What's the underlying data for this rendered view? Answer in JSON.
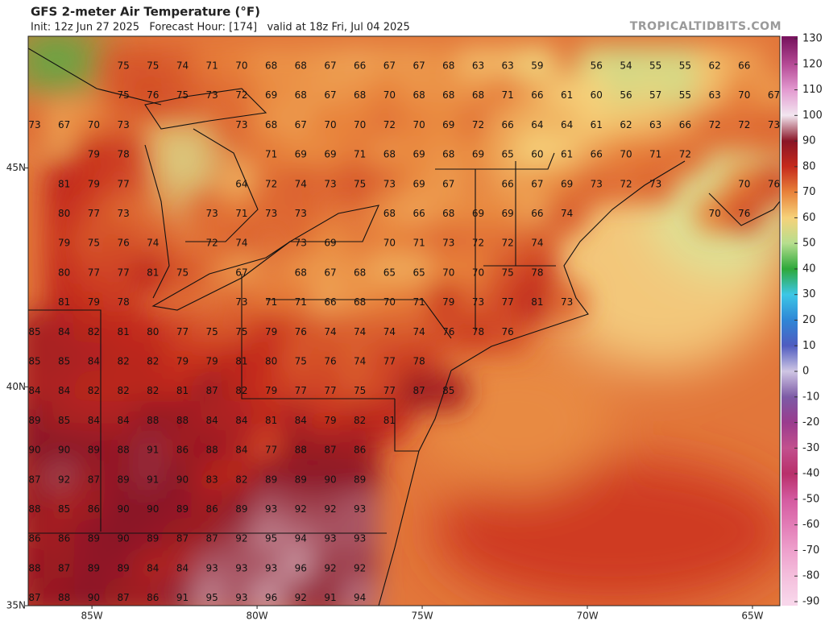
{
  "header": {
    "title": "GFS 2-meter Air Temperature (°F)",
    "subtitle": "Init: 12z Jun 27 2025   Forecast Hour: [174]   valid at 18z Fri, Jul 04 2025",
    "source": "TROPICALTIDBITS.COM"
  },
  "map": {
    "xlim": [
      -86.93,
      -64.17
    ],
    "ylim": [
      35,
      48.01
    ],
    "xticks": [
      {
        "value": -85,
        "label": "85W"
      },
      {
        "value": -80,
        "label": "80W"
      },
      {
        "value": -75,
        "label": "75W"
      },
      {
        "value": -70,
        "label": "70W"
      },
      {
        "value": -65,
        "label": "65W"
      }
    ],
    "yticks": [
      {
        "value": 45,
        "label": "45N"
      },
      {
        "value": 40,
        "label": "40N"
      },
      {
        "value": 35,
        "label": "35N"
      }
    ],
    "temps": [
      [
        null,
        null,
        null,
        75,
        75,
        74,
        71,
        70,
        68,
        68,
        67,
        66,
        67,
        67,
        68,
        63,
        63,
        59,
        null,
        56,
        54,
        55,
        55,
        62,
        66,
        null
      ],
      [
        null,
        null,
        null,
        75,
        76,
        75,
        73,
        72,
        69,
        68,
        67,
        68,
        70,
        68,
        68,
        68,
        71,
        66,
        61,
        60,
        56,
        57,
        55,
        63,
        70,
        67
      ],
      [
        73,
        67,
        70,
        73,
        null,
        null,
        null,
        73,
        68,
        67,
        70,
        70,
        72,
        70,
        69,
        72,
        66,
        64,
        64,
        61,
        62,
        63,
        66,
        72,
        72,
        73
      ],
      [
        null,
        null,
        79,
        78,
        null,
        null,
        null,
        null,
        71,
        69,
        69,
        71,
        68,
        69,
        68,
        69,
        65,
        60,
        61,
        66,
        70,
        71,
        72,
        null,
        null,
        null
      ],
      [
        null,
        81,
        79,
        77,
        null,
        null,
        null,
        64,
        72,
        74,
        73,
        75,
        73,
        69,
        67,
        null,
        66,
        67,
        69,
        73,
        72,
        73,
        null,
        null,
        70,
        76
      ],
      [
        null,
        80,
        77,
        73,
        null,
        null,
        73,
        71,
        73,
        73,
        null,
        null,
        68,
        66,
        68,
        69,
        69,
        66,
        74,
        null,
        null,
        null,
        null,
        70,
        76,
        null
      ],
      [
        null,
        79,
        75,
        76,
        74,
        null,
        72,
        74,
        null,
        73,
        69,
        null,
        70,
        71,
        73,
        72,
        72,
        74,
        null,
        null,
        null,
        null,
        null,
        null,
        null,
        null
      ],
      [
        null,
        80,
        77,
        77,
        81,
        75,
        null,
        67,
        null,
        68,
        67,
        68,
        65,
        65,
        70,
        70,
        75,
        78,
        null,
        null,
        null,
        null,
        null,
        null,
        null,
        null
      ],
      [
        null,
        81,
        79,
        78,
        null,
        null,
        null,
        73,
        71,
        71,
        66,
        68,
        70,
        71,
        79,
        73,
        77,
        81,
        73,
        null,
        null,
        null,
        null,
        null,
        null,
        null
      ],
      [
        85,
        84,
        82,
        81,
        80,
        77,
        75,
        75,
        79,
        76,
        74,
        74,
        74,
        74,
        76,
        78,
        76,
        null,
        null,
        null,
        null,
        null,
        null,
        null,
        null,
        null
      ],
      [
        85,
        85,
        84,
        82,
        82,
        79,
        79,
        81,
        80,
        75,
        76,
        74,
        77,
        78,
        null,
        null,
        null,
        null,
        null,
        null,
        null,
        null,
        null,
        null,
        null,
        null
      ],
      [
        84,
        84,
        82,
        82,
        82,
        81,
        87,
        82,
        79,
        77,
        77,
        75,
        77,
        87,
        85,
        null,
        null,
        null,
        null,
        null,
        null,
        null,
        null,
        null,
        null,
        null
      ],
      [
        89,
        85,
        84,
        84,
        88,
        88,
        84,
        84,
        81,
        84,
        79,
        82,
        81,
        null,
        null,
        null,
        null,
        null,
        null,
        null,
        null,
        null,
        null,
        null,
        null,
        null
      ],
      [
        90,
        90,
        89,
        88,
        91,
        86,
        88,
        84,
        77,
        88,
        87,
        86,
        null,
        null,
        null,
        null,
        null,
        null,
        null,
        null,
        null,
        null,
        null,
        null,
        null,
        null
      ],
      [
        87,
        92,
        87,
        89,
        91,
        90,
        83,
        82,
        89,
        89,
        90,
        89,
        null,
        null,
        null,
        null,
        null,
        null,
        null,
        null,
        null,
        null,
        null,
        null,
        null,
        null
      ],
      [
        88,
        85,
        86,
        90,
        90,
        89,
        86,
        89,
        93,
        92,
        92,
        93,
        null,
        null,
        null,
        null,
        null,
        null,
        null,
        null,
        null,
        null,
        null,
        null,
        null,
        null
      ],
      [
        86,
        86,
        89,
        90,
        89,
        87,
        87,
        92,
        95,
        94,
        93,
        93,
        null,
        null,
        null,
        null,
        null,
        null,
        null,
        null,
        null,
        null,
        null,
        null,
        null,
        null
      ],
      [
        88,
        87,
        89,
        89,
        84,
        84,
        93,
        93,
        93,
        96,
        92,
        92,
        null,
        null,
        null,
        null,
        null,
        null,
        null,
        null,
        null,
        null,
        null,
        null,
        null,
        null
      ],
      [
        87,
        88,
        90,
        87,
        86,
        91,
        95,
        93,
        96,
        92,
        91,
        94,
        null,
        null,
        null,
        null,
        null,
        null,
        null,
        null,
        null,
        null,
        null,
        null,
        null,
        null
      ]
    ]
  },
  "colorbar": {
    "lim": [
      -90,
      130
    ],
    "ticks": [
      130,
      120,
      110,
      100,
      90,
      80,
      70,
      60,
      50,
      40,
      30,
      20,
      10,
      0,
      -10,
      -20,
      -30,
      -40,
      -50,
      -60,
      -70,
      -80,
      -90
    ],
    "colors": [
      "#7a1560",
      "#b54a95",
      "#e39ad0",
      "#f2e6f0",
      "#8a1526",
      "#c52a1c",
      "#e8823a",
      "#f6d27a",
      "#b6de8e",
      "#2ea83a",
      "#3cc7e6",
      "#2f86d6",
      "#4f5cc0",
      "#cfc6e4",
      "#7c5aa6",
      "#9a3c8e",
      "#c2508e",
      "#b82f6a",
      "#d45aa0",
      "#e27cb6",
      "#eea0cc",
      "#f4bedc",
      "#f8d6ea"
    ]
  }
}
